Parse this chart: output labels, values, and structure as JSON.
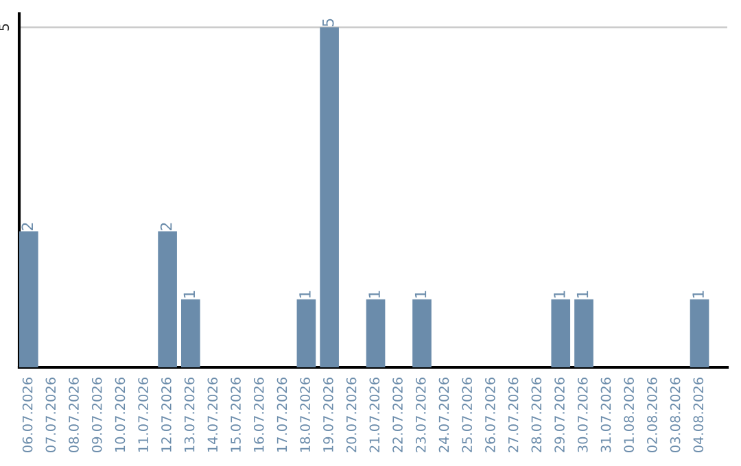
{
  "chart_data": {
    "type": "bar",
    "categories": [
      "06.07.2026",
      "07.07.2026",
      "08.07.2026",
      "09.07.2026",
      "10.07.2026",
      "11.07.2026",
      "12.07.2026",
      "13.07.2026",
      "14.07.2026",
      "15.07.2026",
      "16.07.2026",
      "17.07.2026",
      "18.07.2026",
      "19.07.2026",
      "20.07.2026",
      "21.07.2026",
      "22.07.2026",
      "23.07.2026",
      "24.07.2026",
      "25.07.2026",
      "26.07.2026",
      "27.07.2026",
      "28.07.2026",
      "29.07.2026",
      "30.07.2026",
      "31.07.2026",
      "01.08.2026",
      "02.08.2026",
      "03.08.2026",
      "04.08.2026"
    ],
    "values": [
      2,
      0,
      0,
      0,
      0,
      0,
      2,
      1,
      0,
      0,
      0,
      0,
      1,
      5,
      0,
      1,
      0,
      1,
      0,
      0,
      0,
      0,
      0,
      1,
      1,
      0,
      0,
      0,
      0,
      1
    ],
    "value_labels": [
      "2",
      null,
      null,
      null,
      null,
      null,
      "2",
      "1",
      null,
      null,
      null,
      null,
      "1",
      "5",
      null,
      "1",
      null,
      "1",
      null,
      null,
      null,
      null,
      null,
      "1",
      "1",
      null,
      null,
      null,
      null,
      "1"
    ],
    "color": "#6b8cab",
    "ylim": [
      0,
      5.2
    ],
    "yticks": [
      5
    ],
    "grid": "y"
  }
}
